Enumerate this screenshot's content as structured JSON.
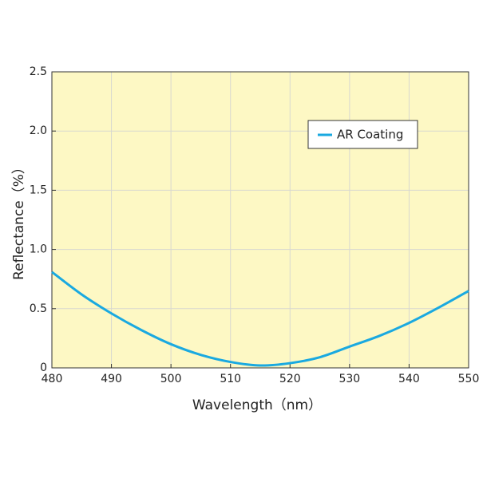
{
  "chart_data": {
    "type": "line",
    "xlabel": "Wavelength（nm）",
    "ylabel": "Reflectance（%）",
    "x": [
      480,
      485,
      490,
      495,
      500,
      505,
      510,
      515,
      520,
      525,
      530,
      535,
      540,
      545,
      550
    ],
    "series": [
      {
        "name": "AR Coating",
        "color": "#1aa9e0",
        "values": [
          0.81,
          0.62,
          0.46,
          0.32,
          0.2,
          0.11,
          0.05,
          0.02,
          0.04,
          0.09,
          0.18,
          0.27,
          0.38,
          0.51,
          0.65
        ]
      }
    ],
    "xlim": [
      480,
      550
    ],
    "xticks": [
      480,
      490,
      500,
      510,
      520,
      530,
      540,
      550
    ],
    "ylim": [
      0,
      2.5
    ],
    "yticks": [
      0,
      0.5,
      {
        "value": 1,
        "label": "1.0"
      },
      1.5,
      {
        "value": 2,
        "label": "2.0"
      },
      2.5
    ],
    "grid": true,
    "legend": "upper right",
    "background": "#fdf8c4"
  }
}
